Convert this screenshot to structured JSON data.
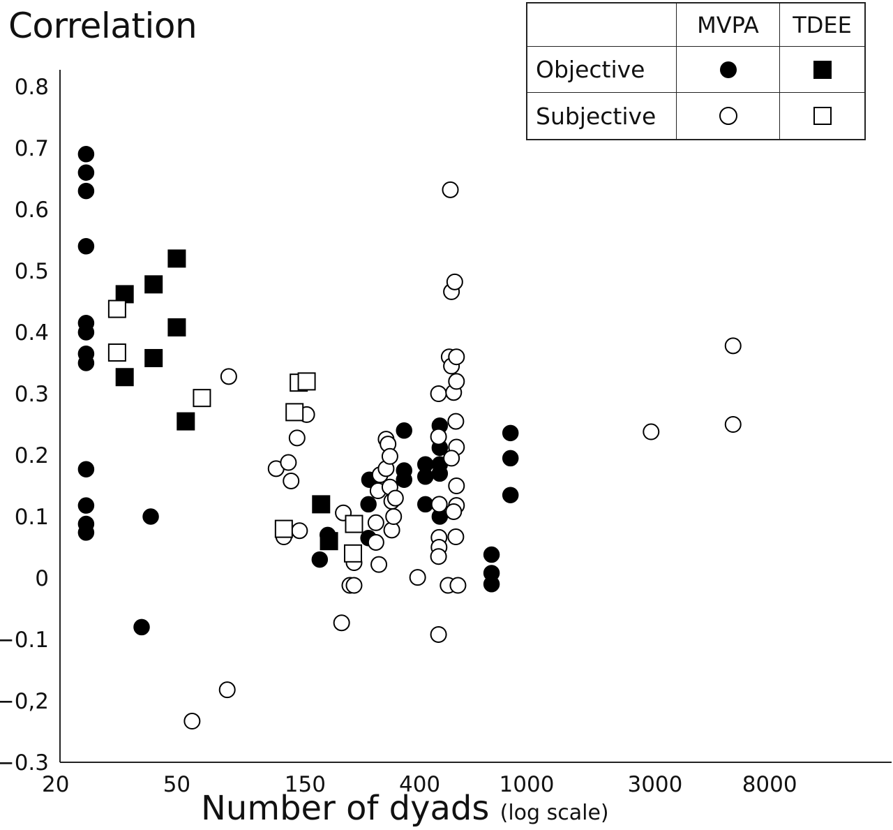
{
  "chart_data": {
    "type": "scatter",
    "title": "",
    "ylabel": "Correlation",
    "xlabel": "Number of dyads",
    "xlabel_note": "(log scale)",
    "x_scale": "log",
    "xlim": [
      20,
      14000
    ],
    "ylim": [
      -0.3,
      0.82
    ],
    "x_ticks": [
      20,
      50,
      150,
      400,
      1000,
      3000,
      8000
    ],
    "x_tick_labels": [
      "20",
      "50",
      "150",
      "400",
      "1000",
      "3000",
      "8000"
    ],
    "y_ticks": [
      -0.3,
      -0.2,
      -0.1,
      0,
      0.1,
      0.2,
      0.3,
      0.4,
      0.5,
      0.6,
      0.7,
      0.8
    ],
    "y_tick_labels": [
      "−0.3",
      "−0,2",
      "−0.1",
      "0",
      "0.1",
      "0.2",
      "0.3",
      "0.4",
      "0.5",
      "0.6",
      "0.7",
      "0.8"
    ],
    "grid": false,
    "legend_position": "top-right",
    "legend": {
      "columns": [
        "MVPA",
        "TDEE"
      ],
      "rows": [
        "Objective",
        "Subjective"
      ],
      "symbols": [
        [
          "filled-circle-icon",
          "filled-square-icon"
        ],
        [
          "open-circle-icon",
          "open-square-icon"
        ]
      ]
    },
    "series": [
      {
        "name": "Objective MVPA",
        "marker": "filled-circle",
        "points": [
          [
            23,
            0.69
          ],
          [
            23,
            0.66
          ],
          [
            23,
            0.63
          ],
          [
            23,
            0.54
          ],
          [
            23,
            0.415
          ],
          [
            23,
            0.4
          ],
          [
            23,
            0.365
          ],
          [
            23,
            0.35
          ],
          [
            23,
            0.177
          ],
          [
            23,
            0.118
          ],
          [
            23,
            0.088
          ],
          [
            23,
            0.074
          ],
          [
            40,
            0.1
          ],
          [
            37,
            -0.08
          ],
          [
            170,
            0.03
          ],
          [
            182,
            0.07
          ],
          [
            260,
            0.16
          ],
          [
            258,
            0.12
          ],
          [
            258,
            0.065
          ],
          [
            350,
            0.24
          ],
          [
            350,
            0.175
          ],
          [
            350,
            0.16
          ],
          [
            420,
            0.185
          ],
          [
            420,
            0.165
          ],
          [
            420,
            0.12
          ],
          [
            475,
            0.248
          ],
          [
            475,
            0.212
          ],
          [
            475,
            0.185
          ],
          [
            475,
            0.17
          ],
          [
            475,
            0.1
          ],
          [
            740,
            0.038
          ],
          [
            740,
            0.008
          ],
          [
            740,
            -0.01
          ],
          [
            870,
            0.236
          ],
          [
            870,
            0.195
          ],
          [
            870,
            0.135
          ]
        ]
      },
      {
        "name": "Objective TDEE",
        "marker": "filled-square",
        "points": [
          [
            32,
            0.462
          ],
          [
            32,
            0.327
          ],
          [
            41,
            0.478
          ],
          [
            41,
            0.358
          ],
          [
            50,
            0.52
          ],
          [
            50,
            0.408
          ],
          [
            54,
            0.255
          ],
          [
            172,
            0.12
          ],
          [
            184,
            0.06
          ]
        ]
      },
      {
        "name": "Subjective MVPA",
        "marker": "open-circle",
        "points": [
          [
            57,
            -0.233
          ],
          [
            77,
            -0.182
          ],
          [
            78,
            0.328
          ],
          [
            117,
            0.178
          ],
          [
            125,
            0.067
          ],
          [
            130,
            0.188
          ],
          [
            133,
            0.158
          ],
          [
            140,
            0.228
          ],
          [
            143,
            0.077
          ],
          [
            152,
            0.266
          ],
          [
            205,
            -0.073
          ],
          [
            208,
            0.106
          ],
          [
            220,
            -0.012
          ],
          [
            228,
            -0.012
          ],
          [
            228,
            0.025
          ],
          [
            275,
            0.09
          ],
          [
            275,
            0.058
          ],
          [
            282,
            0.022
          ],
          [
            280,
            0.142
          ],
          [
            285,
            0.168
          ],
          [
            300,
            0.178
          ],
          [
            300,
            0.226
          ],
          [
            305,
            0.218
          ],
          [
            310,
            0.198
          ],
          [
            310,
            0.148
          ],
          [
            315,
            0.125
          ],
          [
            315,
            0.078
          ],
          [
            320,
            0.1
          ],
          [
            325,
            0.13
          ],
          [
            393,
            0.001
          ],
          [
            470,
            0.3
          ],
          [
            470,
            0.23
          ],
          [
            473,
            0.12
          ],
          [
            472,
            0.066
          ],
          [
            472,
            0.05
          ],
          [
            470,
            0.035
          ],
          [
            470,
            -0.092
          ],
          [
            510,
            -0.012
          ],
          [
            520,
            0.632
          ],
          [
            525,
            0.466
          ],
          [
            540,
            0.482
          ],
          [
            515,
            0.36
          ],
          [
            525,
            0.345
          ],
          [
            535,
            0.302
          ],
          [
            548,
            0.36
          ],
          [
            548,
            0.32
          ],
          [
            545,
            0.255
          ],
          [
            548,
            0.213
          ],
          [
            525,
            0.195
          ],
          [
            548,
            0.15
          ],
          [
            548,
            0.118
          ],
          [
            535,
            0.108
          ],
          [
            545,
            0.067
          ],
          [
            555,
            -0.012
          ],
          [
            2900,
            0.238
          ],
          [
            5850,
            0.378
          ],
          [
            5850,
            0.25
          ]
        ]
      },
      {
        "name": "Subjective TDEE",
        "marker": "open-square",
        "points": [
          [
            30,
            0.438
          ],
          [
            30,
            0.367
          ],
          [
            62,
            0.293
          ],
          [
            125,
            0.08
          ],
          [
            137,
            0.27
          ],
          [
            142,
            0.318
          ],
          [
            152,
            0.32
          ],
          [
            228,
            0.088
          ],
          [
            226,
            0.04
          ]
        ]
      }
    ]
  }
}
